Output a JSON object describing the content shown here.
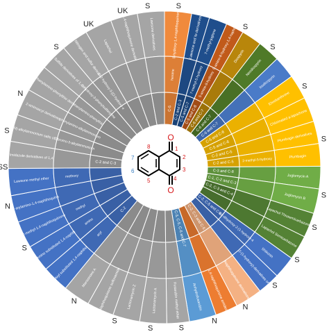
{
  "center_numbers": [
    "1",
    "2",
    "3",
    "4",
    "5",
    "6",
    "7",
    "8"
  ],
  "outer_letters": [
    {
      "text": "S",
      "a": 5
    },
    {
      "text": "S",
      "a": 30
    },
    {
      "text": "S",
      "a": 42
    },
    {
      "text": "S",
      "a": 60
    },
    {
      "text": "S",
      "a": 80
    },
    {
      "text": "S",
      "a": 100
    },
    {
      "text": "S",
      "a": 112
    },
    {
      "text": "S",
      "a": 125
    },
    {
      "text": "S",
      "a": 137
    },
    {
      "text": "N",
      "a": 150
    },
    {
      "text": "N",
      "a": 162
    },
    {
      "text": "S",
      "a": 174
    },
    {
      "text": "S",
      "a": 185
    },
    {
      "text": "S",
      "a": 198
    },
    {
      "text": "N",
      "a": 214
    },
    {
      "text": "S",
      "a": 240
    },
    {
      "text": "N",
      "a": 256
    },
    {
      "text": "SS",
      "a": 270
    },
    {
      "text": "S",
      "a": 283
    },
    {
      "text": "N",
      "a": 297
    },
    {
      "text": "S",
      "a": 318
    },
    {
      "text": "UK",
      "a": 332
    },
    {
      "text": "UK",
      "a": 345
    },
    {
      "text": "S",
      "a": 354
    }
  ],
  "sectors": [
    {
      "start": 0,
      "end": 12,
      "color": "#f08a3c",
      "outer": "5-hydroxy-1,4-naphthoquinone (Juglone)",
      "mid": "hexane",
      "inner": "C-5"
    },
    {
      "start": 12,
      "end": 20,
      "color": "#1f4e8c",
      "outer": "Lawsone and its derivatives",
      "mid": "",
      "inner": "C-2 and C-3"
    },
    {
      "start": 20,
      "end": 28,
      "color": "#1f4e8c",
      "outer": "7-methyl-juglone",
      "mid": "7-methyl-5-hydroxy",
      "inner": "C-5 and C-7"
    },
    {
      "start": 28,
      "end": 36,
      "color": "#c15a1a",
      "outer": "5-amino-8-hydroxy-1,4-naphthoquinone",
      "mid": "5-amino-8-hydroxy",
      "inner": "C-5 and C-8"
    },
    {
      "start": 36,
      "end": 45,
      "color": "#b8860b",
      "outer": "Diospyrin",
      "mid": "",
      "inner": "C-6 and C-7"
    },
    {
      "start": 45,
      "end": 55,
      "color": "#4f7a28",
      "outer": "Neodiospyrin",
      "mid": "",
      "inner": "C-6 and C-7"
    },
    {
      "start": 55,
      "end": 65,
      "color": "#4a7bc8",
      "outer": "Isodiospyrin",
      "mid": "",
      "inner": "C-6 and C-7"
    },
    {
      "start": 65,
      "end": 76,
      "color": "#ffc000",
      "outer": "Ehretianthrone",
      "mid": "",
      "inner": "C-5 and C-8"
    },
    {
      "start": 76,
      "end": 87,
      "color": "#ffc000",
      "outer": "Chlorinated a-lapachone",
      "mid": "",
      "inner": "C-5 and C-8"
    },
    {
      "start": 87,
      "end": 97,
      "color": "#ffc000",
      "outer": "Plumbagin derivatives",
      "mid": "",
      "inner": "C-2 and C-5"
    },
    {
      "start": 97,
      "end": 107,
      "color": "#ffc000",
      "outer": "Plumbagin",
      "mid": "2-methyl-5-hydroxy",
      "inner": "C-2 and C-5"
    },
    {
      "start": 107,
      "end": 117,
      "color": "#70ad47",
      "outer": "Juglomycin A",
      "mid": "",
      "inner": "C-3 and C-8"
    },
    {
      "start": 117,
      "end": 128,
      "color": "#70ad47",
      "outer": "Juglomycin B",
      "mid": "",
      "inner": "C-1, C-2 and C-3"
    },
    {
      "start": 128,
      "end": 139,
      "color": "#548235",
      "outer": "Lapachol Thiosemicarbazone",
      "mid": "",
      "inner": "C-2, C-3 and C-4"
    },
    {
      "start": 139,
      "end": 150,
      "color": "#548235",
      "outer": "Lapachol Semicarbazone",
      "mid": "",
      "inner": ""
    },
    {
      "start": 150,
      "end": 160,
      "color": "#4472c4",
      "outer": "Shikonin",
      "mid": "5,8-dihydroxy-2-(1-hydroxy-4-methyl)",
      "inner": "C-2, C-5 and C-8"
    },
    {
      "start": 160,
      "end": 170,
      "color": "#4472c4",
      "outer": "2-(1-hydroxy)-derivatives of shikonin",
      "mid": "",
      "inner": ""
    },
    {
      "start": 170,
      "end": 182,
      "color": "#f4b183",
      "outer": "Naphthoquinone derivatives",
      "mid": "",
      "inner": "C-2, C-3 and C-5"
    },
    {
      "start": 182,
      "end": 192,
      "color": "#ed7d31",
      "outer": "1,4-naphthoquinone amides",
      "mid": "",
      "inner": ""
    },
    {
      "start": 192,
      "end": 204,
      "color": "#5b9bd5",
      "outer": "Anhydrofusarubin",
      "mid": "",
      "inner": "C-2, C-3, C-5, C-6 and C-7"
    },
    {
      "start": 204,
      "end": 214,
      "color": "#a5a5a5",
      "outer": "Fusarubin methyl ether",
      "mid": "",
      "inner": ""
    },
    {
      "start": 214,
      "end": 226,
      "color": "#a5a5a5",
      "outer": "Lactonamycin A",
      "mid": "",
      "inner": ""
    },
    {
      "start": 226,
      "end": 238,
      "color": "#a5a5a5",
      "outer": "Lactonamycin Z",
      "mid": "",
      "inner": ""
    },
    {
      "start": 238,
      "end": 250,
      "color": "#a5a5a5",
      "outer": "Naphthoquinone sulfonamide",
      "mid": "",
      "inner": ""
    },
    {
      "start": 250,
      "end": 262,
      "color": "#a5a5a5",
      "outer": "Mansonone A",
      "mid": "",
      "inner": ""
    },
    {
      "start": 262,
      "end": 274,
      "color": "#4472c4",
      "outer": "Aryl substituted 1,4-naphthoquinone",
      "mid": "aryl",
      "inner": "C-2"
    },
    {
      "start": 274,
      "end": 286,
      "color": "#4472c4",
      "outer": "Amino substituted 1,4-naphthoquinone",
      "mid": "amino",
      "inner": ""
    },
    {
      "start": 286,
      "end": 298,
      "color": "#4472c4",
      "outer": "2-methyl-1,4-naphthoquinone (Menadione)",
      "mid": "methyl",
      "inner": ""
    },
    {
      "start": 298,
      "end": 310,
      "color": "#4472c4",
      "outer": "2-arylamino-1,4-naphthoquinone",
      "mid": "",
      "inner": ""
    },
    {
      "start": 310,
      "end": 322,
      "color": "#4472c4",
      "outer": "Lawsone methyl ether",
      "mid": "methoxy",
      "inner": ""
    },
    {
      "start": 322,
      "end": 334,
      "color": "#a5a5a5",
      "outer": "Imidazole derivatives of 1,4-naphthoquinone",
      "mid": "",
      "inner": "C-2 and C-3"
    },
    {
      "start": 334,
      "end": 346,
      "color": "#a5a5a5",
      "outer": "(N)-alkylammonium salts of 2-bromo-1,4-naphthoquinone",
      "mid": "2-bromo-3-alkylammonium",
      "inner": ""
    },
    {
      "start": 346,
      "end": 358,
      "color": "#a5a5a5",
      "outer": "2-aminoacyl derivatives",
      "mid": "phenylamino-alkylammonium",
      "inner": ""
    },
    {
      "start": 358,
      "end": 370,
      "color": "#a5a5a5",
      "outer": "Phenylamino-phenylthio derivatives of 1,4-naphthoquinone",
      "mid": "phenylamino-phenylthio",
      "inner": ""
    },
    {
      "start": 370,
      "end": 382,
      "color": "#a5a5a5",
      "outer": "Sulfide derivatives of 1,4-naphthoquinone",
      "mid": "2-hydroxy-3-phenylsulfanylmethyl",
      "inner": ""
    },
    {
      "start": 382,
      "end": 394,
      "color": "#a5a5a5",
      "outer": "Nitrogen and sulfur derivatives of 1,4-naphthoquinone",
      "mid": "2-(2-hydroxy-3-[(2-hydroxy ethyl)thio])",
      "inner": ""
    },
    {
      "start": 394,
      "end": 406,
      "color": "#a5a5a5",
      "outer": "Lapachol",
      "mid": "",
      "inner": ""
    },
    {
      "start": 406,
      "end": 418,
      "color": "#a5a5a5",
      "outer": "1,4-naphthoquinone derivatives containing sulfonamide",
      "mid": "",
      "inner": ""
    },
    {
      "start": 418,
      "end": 430,
      "color": "#a5a5a5",
      "outer": "Lawsone derivatives",
      "mid": "",
      "inner": ""
    }
  ]
}
